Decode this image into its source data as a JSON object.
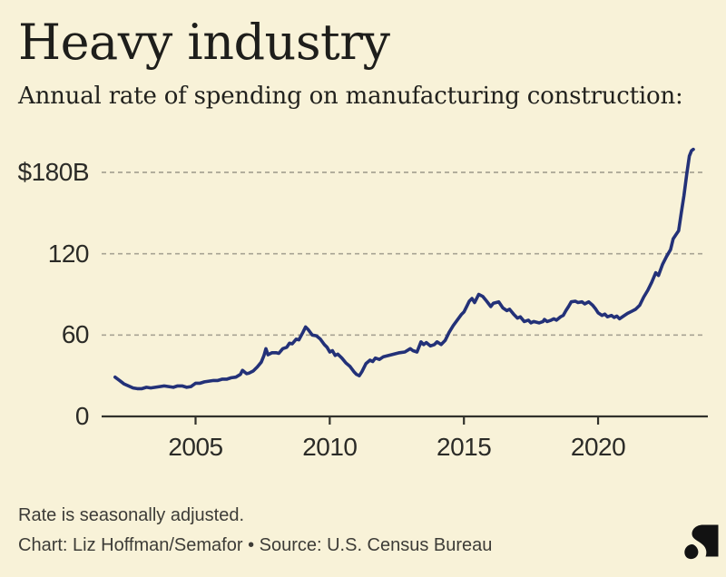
{
  "header": {
    "title": "Heavy industry",
    "subtitle": "Annual rate of spending on manufacturing construction:"
  },
  "chart_data": {
    "type": "line",
    "title": "Heavy industry",
    "subtitle": "Annual rate of spending on manufacturing construction:",
    "xlim": [
      2001.8,
      2023.9
    ],
    "ylim": [
      0,
      200
    ],
    "grid": "horizontal-dashed",
    "legend": "none",
    "yticks": [
      {
        "value": 180,
        "label": "$180B"
      },
      {
        "value": 120,
        "label": "120"
      },
      {
        "value": 60,
        "label": "60"
      },
      {
        "value": 0,
        "label": "0"
      }
    ],
    "xticks": [
      {
        "value": 2005,
        "label": "2005"
      },
      {
        "value": 2010,
        "label": "2010"
      },
      {
        "value": 2015,
        "label": "2015"
      },
      {
        "value": 2020,
        "label": "2020"
      }
    ],
    "series": [
      {
        "name": "Annual rate of manufacturing construction spending ($B)",
        "color": "#233178",
        "points": [
          [
            2002.0,
            29
          ],
          [
            2002.17,
            26.5
          ],
          [
            2002.33,
            24
          ],
          [
            2002.5,
            22.5
          ],
          [
            2002.67,
            21
          ],
          [
            2002.83,
            20.5
          ],
          [
            2003.0,
            20.5
          ],
          [
            2003.17,
            21.5
          ],
          [
            2003.33,
            21
          ],
          [
            2003.5,
            21.5
          ],
          [
            2003.67,
            22
          ],
          [
            2003.83,
            22.5
          ],
          [
            2004.0,
            22
          ],
          [
            2004.17,
            21.5
          ],
          [
            2004.33,
            22.5
          ],
          [
            2004.5,
            22.5
          ],
          [
            2004.67,
            21.5
          ],
          [
            2004.83,
            22
          ],
          [
            2005.0,
            24.5
          ],
          [
            2005.17,
            24.5
          ],
          [
            2005.33,
            25.5
          ],
          [
            2005.5,
            26
          ],
          [
            2005.67,
            26.5
          ],
          [
            2005.83,
            26.5
          ],
          [
            2006.0,
            27.5
          ],
          [
            2006.17,
            27.5
          ],
          [
            2006.33,
            28.5
          ],
          [
            2006.5,
            29
          ],
          [
            2006.67,
            31
          ],
          [
            2006.75,
            34
          ],
          [
            2006.9,
            31.5
          ],
          [
            2007.0,
            32
          ],
          [
            2007.15,
            33.5
          ],
          [
            2007.3,
            36.5
          ],
          [
            2007.45,
            40
          ],
          [
            2007.55,
            45
          ],
          [
            2007.62,
            50
          ],
          [
            2007.7,
            45.5
          ],
          [
            2007.85,
            47
          ],
          [
            2008.0,
            47
          ],
          [
            2008.1,
            46.5
          ],
          [
            2008.25,
            50
          ],
          [
            2008.4,
            51
          ],
          [
            2008.5,
            54
          ],
          [
            2008.6,
            53.5
          ],
          [
            2008.75,
            57
          ],
          [
            2008.85,
            56.5
          ],
          [
            2009.0,
            62
          ],
          [
            2009.1,
            66
          ],
          [
            2009.2,
            64
          ],
          [
            2009.35,
            60
          ],
          [
            2009.5,
            59.5
          ],
          [
            2009.65,
            57
          ],
          [
            2009.8,
            53
          ],
          [
            2009.9,
            51
          ],
          [
            2010.0,
            47.5
          ],
          [
            2010.1,
            48.5
          ],
          [
            2010.2,
            45
          ],
          [
            2010.3,
            46
          ],
          [
            2010.45,
            43
          ],
          [
            2010.6,
            39.5
          ],
          [
            2010.75,
            37
          ],
          [
            2010.9,
            33
          ],
          [
            2011.0,
            31
          ],
          [
            2011.1,
            30
          ],
          [
            2011.2,
            33
          ],
          [
            2011.35,
            39
          ],
          [
            2011.5,
            41.5
          ],
          [
            2011.6,
            40.5
          ],
          [
            2011.7,
            43
          ],
          [
            2011.85,
            42
          ],
          [
            2012.0,
            44
          ],
          [
            2012.2,
            45
          ],
          [
            2012.4,
            46
          ],
          [
            2012.6,
            47
          ],
          [
            2012.8,
            47.5
          ],
          [
            2013.0,
            50
          ],
          [
            2013.1,
            48.5
          ],
          [
            2013.25,
            47.5
          ],
          [
            2013.4,
            55
          ],
          [
            2013.5,
            53
          ],
          [
            2013.6,
            54.5
          ],
          [
            2013.75,
            52
          ],
          [
            2013.9,
            53
          ],
          [
            2014.0,
            55
          ],
          [
            2014.15,
            53
          ],
          [
            2014.3,
            56
          ],
          [
            2014.45,
            62
          ],
          [
            2014.6,
            67
          ],
          [
            2014.75,
            71
          ],
          [
            2014.9,
            75
          ],
          [
            2015.0,
            77
          ],
          [
            2015.1,
            81
          ],
          [
            2015.2,
            85
          ],
          [
            2015.3,
            87
          ],
          [
            2015.4,
            84
          ],
          [
            2015.55,
            90
          ],
          [
            2015.7,
            88.5
          ],
          [
            2015.85,
            85
          ],
          [
            2016.0,
            81
          ],
          [
            2016.1,
            83.5
          ],
          [
            2016.3,
            84.5
          ],
          [
            2016.45,
            80
          ],
          [
            2016.6,
            78
          ],
          [
            2016.7,
            79
          ],
          [
            2016.85,
            75.5
          ],
          [
            2017.0,
            72.5
          ],
          [
            2017.1,
            73.5
          ],
          [
            2017.25,
            70
          ],
          [
            2017.4,
            71
          ],
          [
            2017.5,
            69
          ],
          [
            2017.6,
            70
          ],
          [
            2017.8,
            69
          ],
          [
            2017.95,
            70
          ],
          [
            2018.0,
            71.5
          ],
          [
            2018.1,
            70
          ],
          [
            2018.25,
            71
          ],
          [
            2018.35,
            72
          ],
          [
            2018.45,
            71
          ],
          [
            2018.6,
            73.5
          ],
          [
            2018.7,
            74.5
          ],
          [
            2018.8,
            78
          ],
          [
            2018.9,
            81
          ],
          [
            2019.0,
            84.5
          ],
          [
            2019.15,
            85
          ],
          [
            2019.25,
            84
          ],
          [
            2019.4,
            84.5
          ],
          [
            2019.5,
            83
          ],
          [
            2019.65,
            84.5
          ],
          [
            2019.8,
            82
          ],
          [
            2019.9,
            79.5
          ],
          [
            2020.0,
            76.5
          ],
          [
            2020.15,
            74.5
          ],
          [
            2020.25,
            75.5
          ],
          [
            2020.35,
            73.5
          ],
          [
            2020.5,
            74.5
          ],
          [
            2020.6,
            73
          ],
          [
            2020.7,
            74
          ],
          [
            2020.8,
            72
          ],
          [
            2020.95,
            74
          ],
          [
            2021.1,
            76
          ],
          [
            2021.25,
            77.5
          ],
          [
            2021.4,
            79
          ],
          [
            2021.55,
            82
          ],
          [
            2021.7,
            88
          ],
          [
            2021.85,
            93
          ],
          [
            2022.0,
            99
          ],
          [
            2022.15,
            106
          ],
          [
            2022.25,
            104
          ],
          [
            2022.4,
            112
          ],
          [
            2022.55,
            118
          ],
          [
            2022.7,
            123
          ],
          [
            2022.8,
            131
          ],
          [
            2022.9,
            134
          ],
          [
            2023.0,
            137
          ],
          [
            2023.1,
            150
          ],
          [
            2023.2,
            163
          ],
          [
            2023.3,
            178
          ],
          [
            2023.4,
            192
          ],
          [
            2023.48,
            196
          ],
          [
            2023.55,
            197
          ]
        ]
      }
    ]
  },
  "footer": {
    "note": "Rate is seasonally adjusted.",
    "credit": "Chart: Liz Hoffman/Semafor • Source: U.S. Census Bureau"
  },
  "branding": {
    "logo": "semafor-logo"
  },
  "colors": {
    "background": "#f8f2d8",
    "line": "#233178",
    "grid": "#a8a493",
    "axis": "#32322c",
    "title_text": "#1e1e1b",
    "footer_text": "#3d3c37",
    "logo": "#121212"
  }
}
